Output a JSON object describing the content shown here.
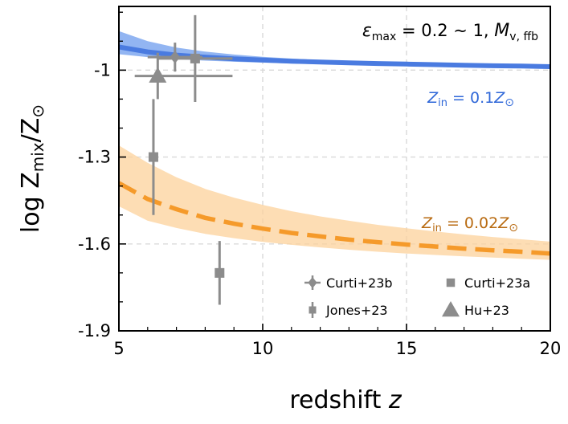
{
  "chart_data": {
    "type": "line",
    "title": "",
    "xlabel": "redshift",
    "xlabel_var": "z",
    "ylabel": "log Z",
    "ylabel_sub": "mix",
    "ylabel_tail": "/Z",
    "ylabel_sym": "⊙",
    "xlim": [
      5,
      20
    ],
    "ylim": [
      -1.9,
      -0.78
    ],
    "x_ticks": [
      5,
      10,
      15,
      20
    ],
    "x_tick_labels": [
      "5",
      "10",
      "15",
      "20"
    ],
    "y_ticks": [
      -1.9,
      -1.6,
      -1.3,
      -1.0
    ],
    "y_tick_labels": [
      "-1.9",
      "-1.6",
      "-1.3",
      "-1"
    ],
    "grid": true,
    "annotation": {
      "eps": "ε",
      "eps_sub": "max",
      "eq": " = 0.2 ∼ 1,  ",
      "m": "M",
      "m_sub": "v, ffb"
    },
    "series": [
      {
        "name": "Z_in = 0.1 Z_sun",
        "label_z": "Z",
        "label_sub": "in",
        "label_eq": " = 0.1",
        "label_tail": "Z",
        "label_sym": "⊙",
        "color": "#4a7be0",
        "band_color": "#7fa8f0",
        "style": "solid",
        "x": [
          5,
          6,
          7,
          8,
          9,
          10,
          11,
          12,
          13,
          14,
          15,
          16,
          17,
          18,
          19,
          20
        ],
        "y": [
          -0.92,
          -0.937,
          -0.948,
          -0.955,
          -0.961,
          -0.965,
          -0.969,
          -0.972,
          -0.975,
          -0.977,
          -0.979,
          -0.981,
          -0.983,
          -0.985,
          -0.986,
          -0.988
        ],
        "y_low": [
          -0.945,
          -0.955,
          -0.962,
          -0.967,
          -0.971,
          -0.974,
          -0.977,
          -0.979,
          -0.981,
          -0.983,
          -0.985,
          -0.986,
          -0.988,
          -0.989,
          -0.99,
          -0.992
        ],
        "y_high": [
          -0.865,
          -0.9,
          -0.922,
          -0.936,
          -0.946,
          -0.954,
          -0.96,
          -0.965,
          -0.969,
          -0.972,
          -0.975,
          -0.977,
          -0.979,
          -0.981,
          -0.983,
          -0.985
        ]
      },
      {
        "name": "Z_in = 0.02 Z_sun",
        "label_z": "Z",
        "label_sub": "in",
        "label_eq": " = 0.02",
        "label_tail": "Z",
        "label_sym": "⊙",
        "color": "#f59a2a",
        "band_color": "#fcd29b",
        "style": "dashed",
        "x": [
          5,
          6,
          7,
          8,
          9,
          10,
          11,
          12,
          13,
          14,
          15,
          16,
          17,
          18,
          19,
          20
        ],
        "y": [
          -1.39,
          -1.445,
          -1.48,
          -1.51,
          -1.53,
          -1.547,
          -1.562,
          -1.574,
          -1.585,
          -1.594,
          -1.602,
          -1.609,
          -1.616,
          -1.622,
          -1.627,
          -1.633
        ],
        "y_low": [
          -1.47,
          -1.52,
          -1.545,
          -1.565,
          -1.58,
          -1.593,
          -1.603,
          -1.612,
          -1.62,
          -1.627,
          -1.633,
          -1.638,
          -1.643,
          -1.647,
          -1.651,
          -1.655
        ],
        "y_high": [
          -1.26,
          -1.32,
          -1.37,
          -1.41,
          -1.44,
          -1.465,
          -1.487,
          -1.505,
          -1.52,
          -1.534,
          -1.546,
          -1.557,
          -1.567,
          -1.576,
          -1.584,
          -1.592
        ]
      }
    ],
    "observations": [
      {
        "name": "Curti+23b",
        "marker": "diamond",
        "points": [
          {
            "x": 6.95,
            "y": -0.955,
            "xerr": [
              0.95,
              0.95
            ],
            "yerr": [
              0.05,
              0.05
            ]
          }
        ]
      },
      {
        "name": "Curti+23a",
        "marker": "square",
        "points": [
          {
            "x": 6.2,
            "y": -1.3,
            "xerr": [
              0,
              0
            ],
            "yerr": [
              0.2,
              0.2
            ]
          },
          {
            "x": 8.5,
            "y": -1.7,
            "xerr": [
              0,
              0
            ],
            "yerr": [
              0.11,
              0.11
            ]
          }
        ]
      },
      {
        "name": "Jones+23",
        "marker": "square-errbar",
        "points": [
          {
            "x": 7.65,
            "y": -0.96,
            "xerr": [
              1.3,
              1.3
            ],
            "yerr": [
              0.15,
              0.15
            ]
          }
        ]
      },
      {
        "name": "Hu+23",
        "marker": "triangle",
        "points": [
          {
            "x": 6.35,
            "y": -1.02,
            "xerr": [
              0.8,
              2.6
            ],
            "yerr": [
              0.08,
              0.08
            ]
          }
        ]
      }
    ],
    "legend": {
      "placement": "bottom-right",
      "entries": [
        {
          "label": "Curti+23b",
          "marker": "diamond"
        },
        {
          "label": "Curti+23a",
          "marker": "square"
        },
        {
          "label": "Jones+23",
          "marker": "square-errbar"
        },
        {
          "label": "Hu+23",
          "marker": "triangle"
        }
      ]
    },
    "obs_color": "#8c8c8c"
  }
}
